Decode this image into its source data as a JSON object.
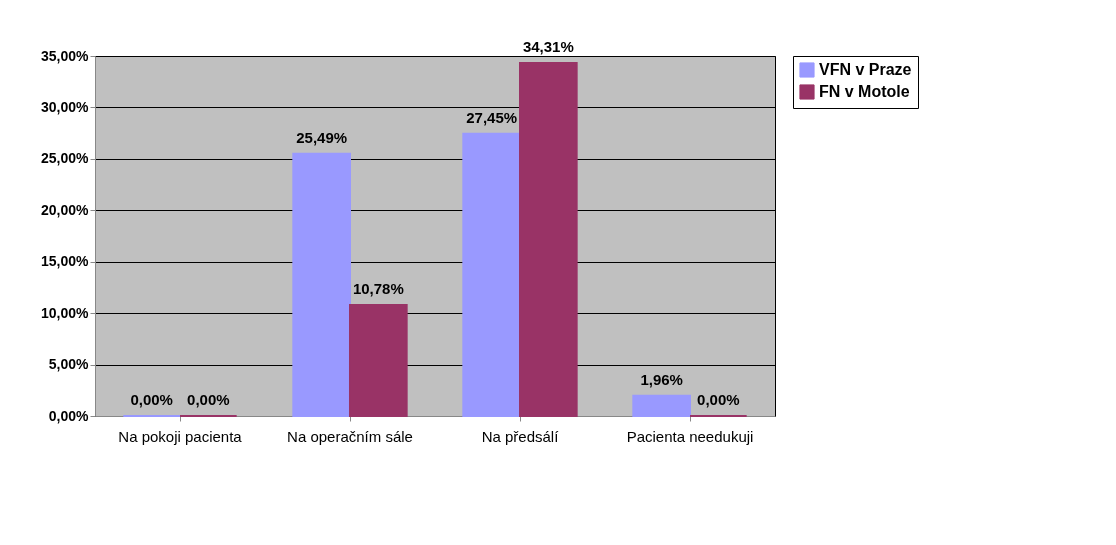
{
  "chart_data": {
    "type": "bar",
    "categories": [
      "Na pokoji pacienta",
      "Na operačním sále",
      "Na předsálí",
      "Pacienta needukuji"
    ],
    "series": [
      {
        "name": "VFN v Praze",
        "color": "#9999ff",
        "values": [
          0,
          25.49,
          27.45,
          1.96
        ],
        "value_labels": [
          "0,00%",
          "25,49%",
          "27,45%",
          "1,96%"
        ]
      },
      {
        "name": "FN v Motole",
        "color": "#993366",
        "values": [
          0,
          10.78,
          34.31,
          0
        ],
        "value_labels": [
          "0,00%",
          "10,78%",
          "34,31%",
          "0,00%"
        ]
      }
    ],
    "ylim": [
      0,
      35
    ],
    "yticks": [
      {
        "value": 0,
        "label": "0,00%"
      },
      {
        "value": 5,
        "label": "5,00%"
      },
      {
        "value": 10,
        "label": "10,00%"
      },
      {
        "value": 15,
        "label": "15,00%"
      },
      {
        "value": 20,
        "label": "20,00%"
      },
      {
        "value": 25,
        "label": "25,00%"
      },
      {
        "value": 30,
        "label": "30,00%"
      },
      {
        "value": 35,
        "label": "35,00%"
      }
    ],
    "grid": "y",
    "legend": "right"
  }
}
